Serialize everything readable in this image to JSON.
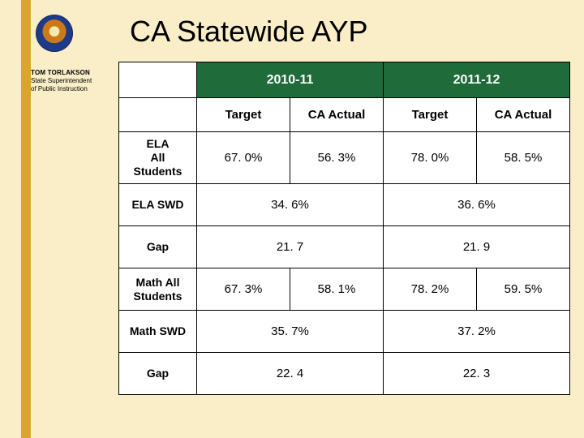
{
  "official": {
    "name": "TOM TORLAKSON",
    "line1": "State Superintendent",
    "line2": "of Public Instruction"
  },
  "title": "CA Statewide AYP",
  "table": {
    "year_headers": [
      "2010-11",
      "2011-12"
    ],
    "sub_headers": [
      "Target",
      "CA Actual",
      "Target",
      "CA Actual"
    ],
    "rows": [
      {
        "label": "ELA\nAll\nStudents",
        "cells": [
          "67. 0%",
          "56. 3%",
          "78. 0%",
          "58. 5%"
        ],
        "span": [
          1,
          1,
          1,
          1
        ],
        "tall": true
      },
      {
        "label": "ELA SWD",
        "cells": [
          "34. 6%",
          "36. 6%"
        ],
        "span": [
          2,
          2
        ]
      },
      {
        "label": "Gap",
        "cells": [
          "21. 7",
          "21. 9"
        ],
        "span": [
          2,
          2
        ]
      },
      {
        "label": "Math All\nStudents",
        "cells": [
          "67. 3%",
          "58. 1%",
          "78. 2%",
          "59. 5%"
        ],
        "span": [
          1,
          1,
          1,
          1
        ]
      },
      {
        "label": "Math SWD",
        "cells": [
          "35. 7%",
          "37. 2%"
        ],
        "span": [
          2,
          2
        ]
      },
      {
        "label": "Gap",
        "cells": [
          "22. 4",
          "22. 3"
        ],
        "span": [
          2,
          2
        ]
      }
    ]
  },
  "colors": {
    "slide_bg": "#f9eec7",
    "stripe": "#d9a52a",
    "header_bg": "#1f6b3a",
    "header_text": "#ffffff",
    "cell_bg": "#ffffff",
    "border": "#000000"
  }
}
